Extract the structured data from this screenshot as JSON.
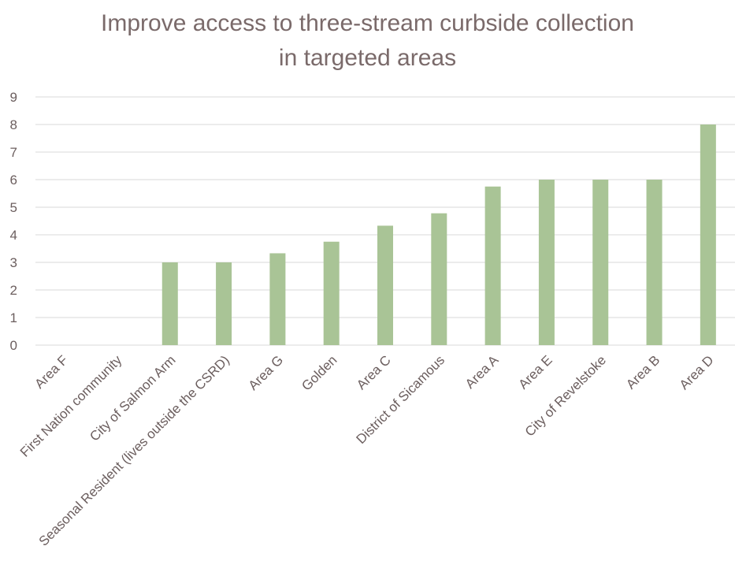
{
  "chart_data": {
    "type": "bar",
    "title_lines": [
      "Improve access to three-stream curbside collection",
      "in targeted areas"
    ],
    "categories": [
      "Area F",
      "First Nation community",
      "City of Salmon Arm",
      "Seasonal Resident (lives outside the CSRD)",
      "Area G",
      "Golden",
      "Area C",
      "District of Sicamous",
      "Area A",
      "Area E",
      "City of Revelstoke",
      "Area B",
      "Area D"
    ],
    "values": [
      0,
      0,
      3,
      3,
      3.33,
      3.75,
      4.33,
      4.78,
      5.75,
      6,
      6,
      6,
      8
    ],
    "ylim": [
      0,
      9
    ],
    "yticks": [
      "0",
      "1",
      "2",
      "3",
      "4",
      "5",
      "6",
      "7",
      "8",
      "9"
    ],
    "grid": true,
    "legend": "none",
    "bar_color": "#a9c496",
    "grid_color": "#d9d9d9",
    "text_color": "#6b5e5e"
  }
}
